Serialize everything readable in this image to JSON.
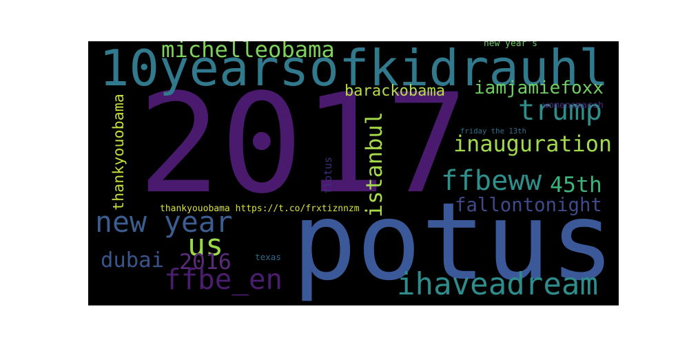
{
  "wordcloud": {
    "background": "#000000",
    "words": [
      {
        "id": "2017",
        "text": "2017",
        "color": "#4a1a6e"
      },
      {
        "id": "potus",
        "text": "potus",
        "color": "#3b5998"
      },
      {
        "id": "10yearsofkidrauhl",
        "text": "10yearsofkidrauhl",
        "color": "#31798c"
      },
      {
        "id": "michelleobama",
        "text": "michelleobama",
        "color": "#7ed35b"
      },
      {
        "id": "trump",
        "text": "trump",
        "color": "#2f8e8b"
      },
      {
        "id": "barackobama",
        "text": "barackobama",
        "color": "#b7dd4a"
      },
      {
        "id": "iamjamiefoxx",
        "text": "iamjamiefoxx",
        "color": "#6fd061"
      },
      {
        "id": "inauguration",
        "text": "inauguration",
        "color": "#a2da4d"
      },
      {
        "id": "ffbeww",
        "text": "ffbeww",
        "color": "#2e8f8b"
      },
      {
        "id": "45th",
        "text": "45th",
        "color": "#3fb37c"
      },
      {
        "id": "fallontonight",
        "text": "fallontonight",
        "color": "#3e4a8a"
      },
      {
        "id": "new-year",
        "text": "new year",
        "color": "#3b5d8f"
      },
      {
        "id": "us",
        "text": "us",
        "color": "#9cd84c"
      },
      {
        "id": "2016",
        "text": "2016",
        "color": "#5c2a7a"
      },
      {
        "id": "dubai",
        "text": "dubai",
        "color": "#3a548c"
      },
      {
        "id": "ffbe_en",
        "text": "ffbe_en",
        "color": "#4a1d6e"
      },
      {
        "id": "ihaveadream",
        "text": "ihaveadream",
        "color": "#2e8c8c"
      },
      {
        "id": "thankyouobama-link",
        "text": "thankyouobama https://t.co/frxtiznnzm",
        "color": "#d9e03a"
      },
      {
        "id": "thankyouobama",
        "text": "thankyouobama",
        "color": "#c8dc3e"
      },
      {
        "id": "istanbul",
        "text": "istanbul",
        "color": "#a5db4a"
      },
      {
        "id": "new-years",
        "text": "new year's",
        "color": "#6ccc63"
      },
      {
        "id": "womensmarch",
        "text": "womensmarch",
        "color": "#4a2a7a"
      },
      {
        "id": "friday-the-13th",
        "text": "friday the 13th",
        "color": "#336f8e"
      },
      {
        "id": "flotus",
        "text": "flotus",
        "color": "#3d2f80"
      },
      {
        "id": "texas",
        "text": "texas",
        "color": "#2f6a8e"
      }
    ]
  }
}
